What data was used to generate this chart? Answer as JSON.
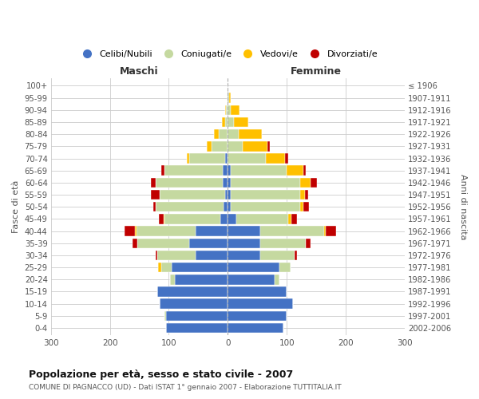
{
  "age_groups": [
    "0-4",
    "5-9",
    "10-14",
    "15-19",
    "20-24",
    "25-29",
    "30-34",
    "35-39",
    "40-44",
    "45-49",
    "50-54",
    "55-59",
    "60-64",
    "65-69",
    "70-74",
    "75-79",
    "80-84",
    "85-89",
    "90-94",
    "95-99",
    "100+"
  ],
  "birth_years": [
    "2002-2006",
    "1997-2001",
    "1992-1996",
    "1987-1991",
    "1982-1986",
    "1977-1981",
    "1972-1976",
    "1967-1971",
    "1962-1966",
    "1957-1961",
    "1952-1956",
    "1947-1951",
    "1942-1946",
    "1937-1941",
    "1932-1936",
    "1927-1931",
    "1922-1926",
    "1917-1921",
    "1912-1916",
    "1907-1911",
    "≤ 1906"
  ],
  "maschi_celibi": [
    105,
    105,
    115,
    120,
    90,
    95,
    55,
    65,
    55,
    12,
    7,
    5,
    8,
    8,
    5,
    0,
    0,
    0,
    0,
    0,
    0
  ],
  "maschi_coniugati": [
    0,
    2,
    0,
    0,
    8,
    18,
    65,
    88,
    100,
    95,
    115,
    110,
    115,
    100,
    60,
    28,
    15,
    5,
    3,
    0,
    0
  ],
  "maschi_vedovi": [
    0,
    0,
    0,
    0,
    0,
    5,
    0,
    0,
    2,
    2,
    0,
    0,
    0,
    0,
    5,
    8,
    8,
    5,
    2,
    0,
    0
  ],
  "maschi_divorziati": [
    0,
    0,
    0,
    0,
    0,
    0,
    2,
    8,
    18,
    8,
    5,
    15,
    8,
    5,
    0,
    0,
    0,
    0,
    0,
    0,
    0
  ],
  "femmine_nubili": [
    95,
    100,
    110,
    100,
    80,
    88,
    55,
    55,
    55,
    15,
    5,
    5,
    5,
    5,
    0,
    0,
    0,
    0,
    0,
    0,
    0
  ],
  "femmine_coniugate": [
    0,
    0,
    0,
    0,
    8,
    18,
    58,
    78,
    108,
    88,
    118,
    118,
    118,
    95,
    65,
    25,
    18,
    10,
    5,
    2,
    0
  ],
  "femmine_vedove": [
    0,
    0,
    0,
    0,
    0,
    0,
    0,
    0,
    3,
    5,
    5,
    8,
    18,
    28,
    32,
    42,
    40,
    25,
    15,
    3,
    0
  ],
  "femmine_divorziate": [
    0,
    0,
    0,
    0,
    0,
    0,
    5,
    8,
    18,
    10,
    10,
    5,
    10,
    5,
    5,
    5,
    0,
    0,
    0,
    0,
    0
  ],
  "color_celibi": "#4472c4",
  "color_coniugati": "#c5d9a0",
  "color_vedovi": "#ffc000",
  "color_divorziati": "#c00000",
  "xlim": 300,
  "title": "Popolazione per età, sesso e stato civile - 2007",
  "subtitle": "COMUNE DI PAGNACCO (UD) - Dati ISTAT 1° gennaio 2007 - Elaborazione TUTTITALIA.IT",
  "ylabel_left": "Fasce di età",
  "ylabel_right": "Anni di nascita",
  "xlabel_left": "Maschi",
  "xlabel_right": "Femmine",
  "bg_color": "#ffffff",
  "grid_color": "#cccccc"
}
